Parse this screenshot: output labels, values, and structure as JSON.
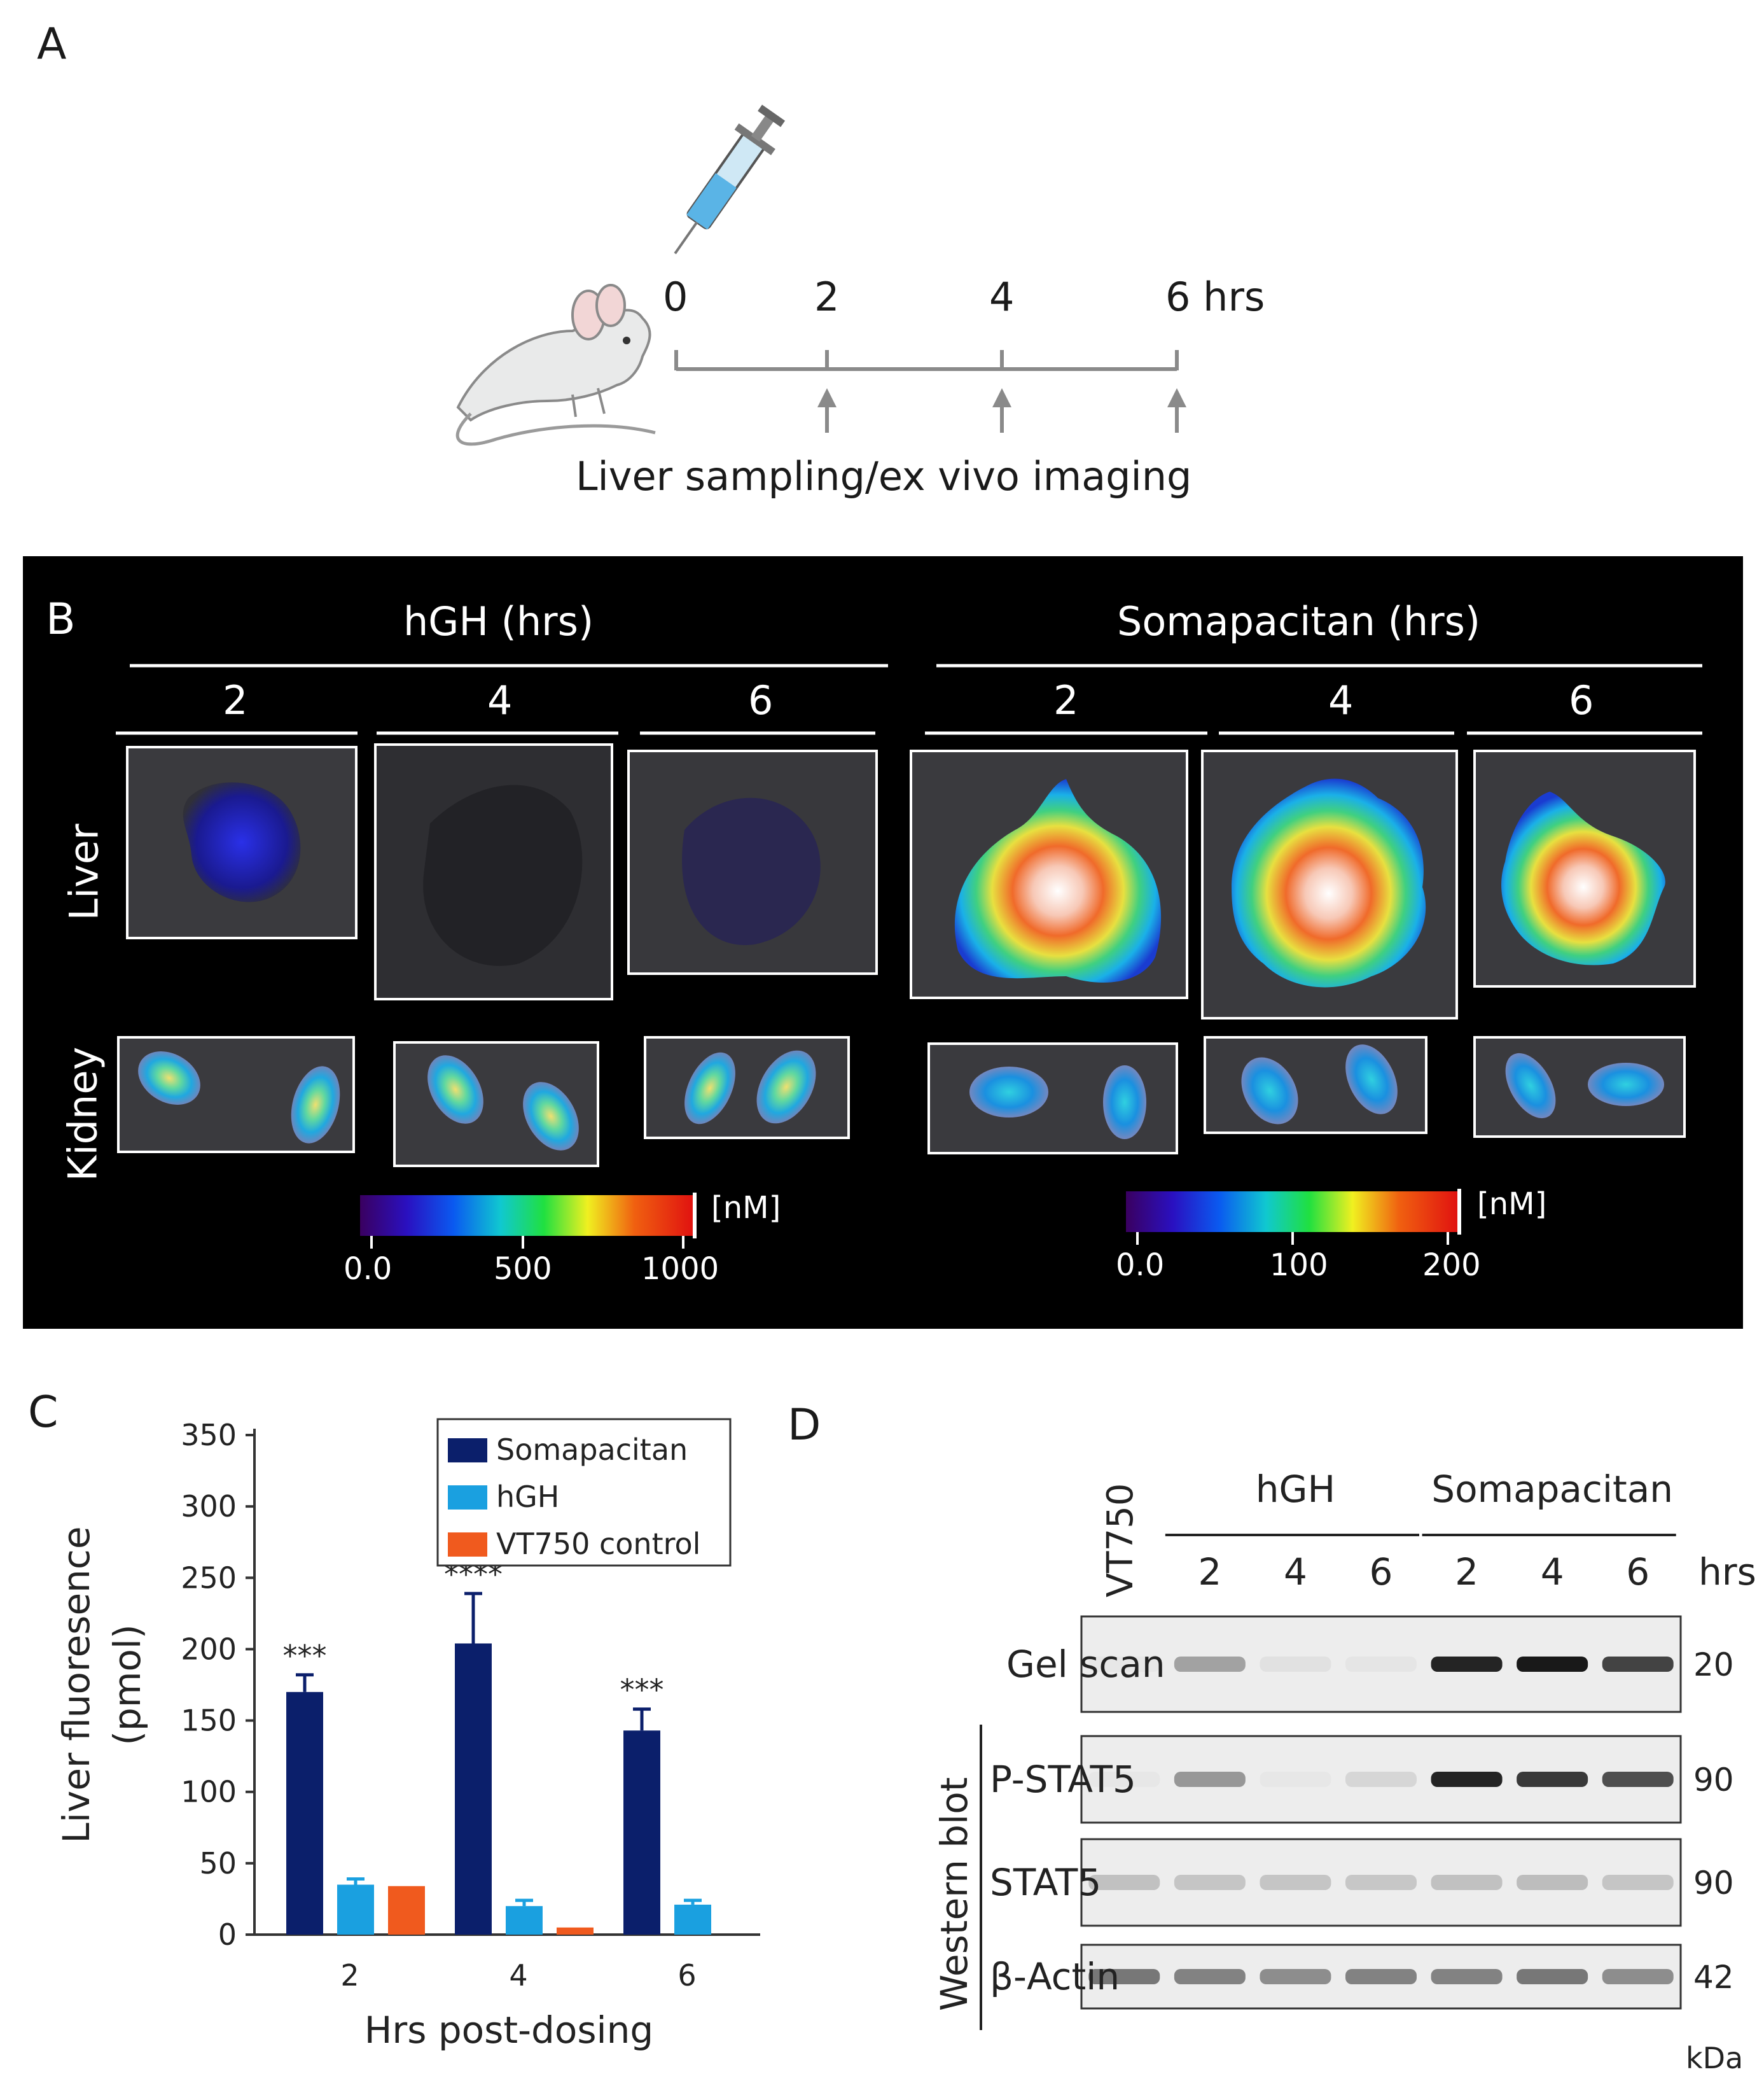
{
  "panel_a": {
    "letter": "A",
    "timeline_ticks": [
      "0",
      "2",
      "4",
      "6 hrs"
    ],
    "caption": "Liver sampling/ex vivo imaging",
    "icons": [
      "mouse-icon",
      "syringe-icon",
      "arrow-up-icon"
    ]
  },
  "panel_b": {
    "letter": "B",
    "group_hgh": "hGH (hrs)",
    "group_soma": "Somapacitan (hrs)",
    "times": [
      "2",
      "4",
      "6"
    ],
    "row_liver": "Liver",
    "row_kidney": "Kidney",
    "scale_hgh": {
      "unit": "[nM]",
      "ticks": [
        "0.0",
        "500",
        "1000"
      ]
    },
    "scale_soma": {
      "unit": "[nM]",
      "ticks": [
        "0.0",
        "100",
        "200"
      ]
    }
  },
  "panel_c": {
    "letter": "C"
  },
  "chart_data": {
    "type": "bar",
    "categories": [
      "2",
      "4",
      "6"
    ],
    "xlabel": "Hrs post-dosing",
    "ylabel": "Liver fluoresence (pmol)",
    "ylim": [
      0,
      350
    ],
    "yticks": [
      "0",
      "50",
      "100",
      "150",
      "200",
      "250",
      "300",
      "350"
    ],
    "series": [
      {
        "name": "Somapacitan",
        "color": "#0b1f6b",
        "values": [
          170,
          204,
          143
        ],
        "errors": [
          12,
          35,
          15
        ]
      },
      {
        "name": "hGH",
        "color": "#1aa0e0",
        "values": [
          35,
          20,
          21
        ],
        "errors": [
          4,
          4,
          3
        ]
      },
      {
        "name": "VT750 control",
        "color": "#f05a1e",
        "values": [
          34,
          5,
          null
        ],
        "errors": [
          0,
          0,
          0
        ]
      }
    ],
    "significance": [
      "***",
      "****",
      "***"
    ],
    "legend_position": "top-right"
  },
  "panel_d": {
    "letter": "D",
    "lane_vt750": "VT750",
    "group_hgh": "hGH",
    "group_soma": "Somapacitan",
    "lanes": [
      "2",
      "4",
      "6",
      "2",
      "4",
      "6"
    ],
    "hrs_label": "hrs",
    "western_blot_label": "Western blot",
    "unit": "kDa",
    "rows": [
      {
        "label": "Gel scan",
        "kda": "20",
        "intensity": [
          0.02,
          0.35,
          0.05,
          0.03,
          0.95,
          1.0,
          0.8
        ]
      },
      {
        "label": "P-STAT5",
        "kda": "90",
        "intensity": [
          0.02,
          0.4,
          0.02,
          0.1,
          0.95,
          0.85,
          0.75
        ]
      },
      {
        "label": "STAT5",
        "kda": "90",
        "intensity": [
          0.2,
          0.18,
          0.18,
          0.17,
          0.2,
          0.22,
          0.18
        ]
      },
      {
        "label": "β-Actin",
        "kda": "42",
        "intensity": [
          0.55,
          0.5,
          0.45,
          0.5,
          0.5,
          0.55,
          0.45
        ]
      }
    ]
  }
}
